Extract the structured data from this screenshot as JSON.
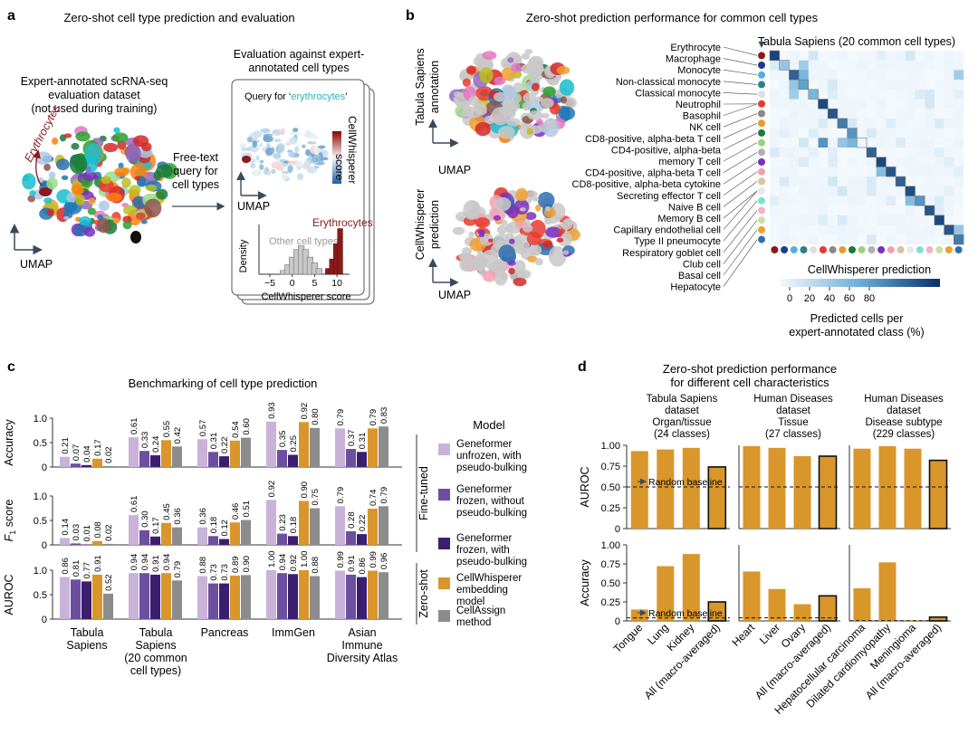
{
  "panels": {
    "a": {
      "letter": "a",
      "title": "Zero-shot cell type prediction and evaluation",
      "dataset_lines": [
        "Expert-annotated scRNA-seq",
        "evaluation dataset",
        "(not used during training)"
      ],
      "erythrocytes_label": "Erythrocytes",
      "umap_label": "UMAP",
      "query_lines": [
        "Free-text",
        "query for",
        "cell types"
      ],
      "eval_title_lines": [
        "Evaluation against expert-",
        "annotated cell types"
      ],
      "query_prefix": "Query for ‘",
      "query_term": "erythrocytes",
      "query_suffix": "’",
      "score_label_lines": [
        "CellWhisperer",
        "score"
      ],
      "card_umap_label": "UMAP",
      "hist": {
        "ylabel": "Density",
        "xlabel": "CellWhisperer score",
        "other_label": "Other cell types",
        "ery_label": "Erythrocytes",
        "xticks": [
          "−5",
          "0",
          "5",
          "10"
        ]
      }
    },
    "b": {
      "letter": "b",
      "title": "Zero-shot prediction performance for common cell types",
      "ts_annotation_lines": [
        "Tabula Sapiens",
        "annotation"
      ],
      "cw_prediction_lines": [
        "CellWhisperer",
        "prediction"
      ],
      "umap_label": "UMAP",
      "heatmap_title": "Tabula Sapiens (20 common cell types)",
      "heatmap_xlabel": "CellWhisperer prediction",
      "colorbar_ticks": [
        "0",
        "20",
        "40",
        "60",
        "80"
      ],
      "colorbar_label_lines": [
        "Predicted cells per",
        "expert-annotated class (%)"
      ],
      "cell_types": [
        "Erythrocyte",
        "Macrophage",
        "Monocyte",
        "Non-classical monocyte",
        "Classical monocyte",
        "Neutrophil",
        "Basophil",
        "NK cell",
        "CD8-positive, alpha-beta T cell",
        "CD4-positive, alpha-beta",
        "memory T cell",
        "CD4-positive, alpha-beta T cell",
        "CD8-positive, alpha-beta cytokine",
        "Secreting effector T cell",
        "Naive B cell",
        "Memory B cell",
        "Capillary endothelial cell",
        "Type II pneumocyte",
        "Respiratory goblet cell",
        "Club cell",
        "Basal cell",
        "Hepatocyte"
      ],
      "class_colors": [
        "#8b1a1a",
        "#1f3a93",
        "#4fb3d9",
        "#2a7f8f",
        "#e0e0e0",
        "#e63b2e",
        "#888888",
        "#e69b2e",
        "#1a7a3a",
        "#9ad07a",
        "#b0b0b0",
        "#7b2fbf",
        "#f4a0b0",
        "#d9c3a0",
        "#e8e8e8",
        "#7fe0d0",
        "#f5b1c8",
        "#c8e0a0",
        "#f0a030",
        "#2f6fb0"
      ]
    },
    "c": {
      "letter": "c",
      "title": "Benchmarking of cell type prediction",
      "row_labels": [
        "Accuracy",
        "F",
        "AUROC"
      ],
      "f1_sub": "1",
      "f1_suffix": " score",
      "yticks": [
        "0",
        "0.5",
        "1.0"
      ],
      "groups": [
        "Tabula Sapiens",
        "Tabula Sapiens (20 common cell types)",
        "Pancreas",
        "ImmGen",
        "Asian Immune Diversity Atlas"
      ],
      "group_label_lines": [
        [
          "Tabula",
          "Sapiens"
        ],
        [
          "Tabula",
          "Sapiens",
          "(20 common",
          "cell types)"
        ],
        [
          "Pancreas"
        ],
        [
          "ImmGen"
        ],
        [
          "Asian",
          "Immune",
          "Diversity Atlas"
        ]
      ],
      "fine_tuned_label": "Fine-tuned",
      "zero_shot_label": "Zero-shot",
      "legend_title": "Model",
      "legend": [
        {
          "name_lines": [
            "Geneformer",
            "unfrozen, with",
            "pseudo-bulking"
          ],
          "color": "#c9b3d9"
        },
        {
          "name_lines": [
            "Geneformer",
            "frozen, without",
            "pseudo-bulking"
          ],
          "color": "#6d4fa0"
        },
        {
          "name_lines": [
            "Geneformer",
            "frozen, with",
            "pseudo-bulking"
          ],
          "color": "#3b1f6e"
        },
        {
          "name_lines": [
            "CellWhisperer",
            "embedding",
            "model"
          ],
          "color": "#d9962b"
        },
        {
          "name_lines": [
            "CellAssign",
            "method"
          ],
          "color": "#8c8c8c"
        }
      ]
    },
    "d": {
      "letter": "d",
      "title_lines": [
        "Zero-shot prediction performance",
        "for different cell characteristics"
      ],
      "col_heads": [
        [
          "Tabula Sapiens",
          "dataset",
          "Organ/tissue",
          "(24 classes)"
        ],
        [
          "Human Diseases",
          "dataset",
          "Tissue",
          "(27 classes)"
        ],
        [
          "Human Diseases",
          "dataset",
          "Disease subtype",
          "(229 classes)"
        ]
      ],
      "row_labels": [
        "AUROC",
        "Accuracy"
      ],
      "yticks": [
        "0",
        "0.25",
        "0.50",
        "0.75",
        "1.00"
      ],
      "random_baseline_label": "Random baseline",
      "bar_color": "#d9962b"
    }
  },
  "chart_data": [
    {
      "type": "heatmap",
      "title": "Tabula Sapiens (20 common cell types)",
      "xlabel": "CellWhisperer prediction",
      "ylabel": "",
      "n": 20,
      "colorbar_range": [
        0,
        100
      ],
      "colorbar_label": "Predicted cells per expert-annotated class (%)",
      "strong": [
        [
          0,
          0,
          92
        ],
        [
          1,
          1,
          35
        ],
        [
          2,
          2,
          80
        ],
        [
          3,
          3,
          55
        ],
        [
          4,
          4,
          45
        ],
        [
          5,
          5,
          90
        ],
        [
          6,
          6,
          85
        ],
        [
          7,
          7,
          70
        ],
        [
          8,
          8,
          60
        ],
        [
          9,
          8,
          45
        ],
        [
          10,
          10,
          80
        ],
        [
          11,
          11,
          90
        ],
        [
          12,
          12,
          85
        ],
        [
          13,
          13,
          80
        ],
        [
          14,
          14,
          88
        ],
        [
          15,
          15,
          60
        ],
        [
          16,
          16,
          85
        ],
        [
          17,
          17,
          90
        ],
        [
          18,
          18,
          85
        ],
        [
          19,
          19,
          70
        ],
        [
          1,
          3,
          30
        ],
        [
          2,
          3,
          45
        ],
        [
          3,
          2,
          35
        ],
        [
          4,
          2,
          30
        ],
        [
          9,
          5,
          60
        ],
        [
          9,
          7,
          35
        ],
        [
          15,
          14,
          40
        ],
        [
          12,
          11,
          40
        ],
        [
          18,
          19,
          35
        ],
        [
          2,
          19,
          30
        ]
      ]
    },
    {
      "type": "bar",
      "title": "Benchmarking of cell type prediction",
      "categories": [
        "Tabula Sapiens",
        "Tabula Sapiens (20 common cell types)",
        "Pancreas",
        "ImmGen",
        "Asian Immune Diversity Atlas"
      ],
      "ylim": [
        0,
        1
      ],
      "metrics": [
        {
          "metric": "Accuracy",
          "series": [
            {
              "name": "Geneformer unfrozen, with pseudo-bulking",
              "values": [
                0.21,
                0.61,
                0.57,
                0.93,
                0.79
              ]
            },
            {
              "name": "Geneformer frozen, without pseudo-bulking",
              "values": [
                0.07,
                0.33,
                0.31,
                0.35,
                0.37
              ]
            },
            {
              "name": "Geneformer frozen, with pseudo-bulking",
              "values": [
                0.04,
                0.24,
                0.22,
                0.25,
                0.31
              ]
            },
            {
              "name": "CellWhisperer embedding model",
              "values": [
                0.17,
                0.55,
                0.54,
                0.92,
                0.79
              ]
            },
            {
              "name": "CellAssign method",
              "values": [
                0.02,
                0.42,
                0.6,
                0.8,
                0.83
              ]
            }
          ]
        },
        {
          "metric": "F1 score",
          "series": [
            {
              "name": "Geneformer unfrozen, with pseudo-bulking",
              "values": [
                0.14,
                0.61,
                0.36,
                0.92,
                0.79
              ]
            },
            {
              "name": "Geneformer frozen, without pseudo-bulking",
              "values": [
                0.03,
                0.3,
                0.18,
                0.23,
                0.28
              ]
            },
            {
              "name": "Geneformer frozen, with pseudo-bulking",
              "values": [
                0.01,
                0.17,
                0.12,
                0.18,
                0.22
              ]
            },
            {
              "name": "CellWhisperer embedding model",
              "values": [
                0.08,
                0.45,
                0.46,
                0.9,
                0.74
              ]
            },
            {
              "name": "CellAssign method",
              "values": [
                0.02,
                0.36,
                0.51,
                0.75,
                0.79
              ]
            }
          ]
        },
        {
          "metric": "AUROC",
          "series": [
            {
              "name": "Geneformer unfrozen, with pseudo-bulking",
              "values": [
                0.86,
                0.94,
                0.88,
                1.0,
                0.99
              ]
            },
            {
              "name": "Geneformer frozen, without pseudo-bulking",
              "values": [
                0.81,
                0.94,
                0.73,
                0.94,
                0.91
              ]
            },
            {
              "name": "Geneformer frozen, with pseudo-bulking",
              "values": [
                0.77,
                0.91,
                0.73,
                0.92,
                0.86
              ]
            },
            {
              "name": "CellWhisperer embedding model",
              "values": [
                0.91,
                0.94,
                0.89,
                1.0,
                0.99
              ]
            },
            {
              "name": "CellAssign method",
              "values": [
                0.52,
                0.79,
                0.9,
                0.88,
                0.96
              ]
            }
          ]
        }
      ]
    },
    {
      "type": "bar",
      "title": "Zero-shot prediction performance for different cell characteristics",
      "ylim": [
        0,
        1.0
      ],
      "random_baseline": {
        "AUROC": 0.5,
        "Accuracy": [
          0.04,
          0.04,
          0.004
        ]
      },
      "groups": [
        {
          "name": "Tabula Sapiens dataset Organ/tissue (24 classes)",
          "categories": [
            "Tongue",
            "Lung",
            "Kidney",
            "All (macro-averaged)"
          ],
          "AUROC": [
            0.93,
            0.95,
            0.97,
            0.74
          ],
          "Accuracy": [
            0.15,
            0.72,
            0.88,
            0.25
          ]
        },
        {
          "name": "Human Diseases dataset Tissue (27 classes)",
          "categories": [
            "Heart",
            "Liver",
            "Ovary",
            "All (macro-averaged)"
          ],
          "AUROC": [
            0.99,
            0.97,
            0.87,
            0.87
          ],
          "Accuracy": [
            0.65,
            0.42,
            0.22,
            0.33
          ]
        },
        {
          "name": "Human Diseases dataset Disease subtype (229 classes)",
          "categories": [
            "Hepatocellular carcinoma",
            "Dilated cardiomyopathy",
            "Meningioma",
            "All (macro-averaged)"
          ],
          "AUROC": [
            0.96,
            0.99,
            0.96,
            0.82
          ],
          "Accuracy": [
            0.43,
            0.77,
            0.01,
            0.05
          ]
        }
      ]
    }
  ]
}
